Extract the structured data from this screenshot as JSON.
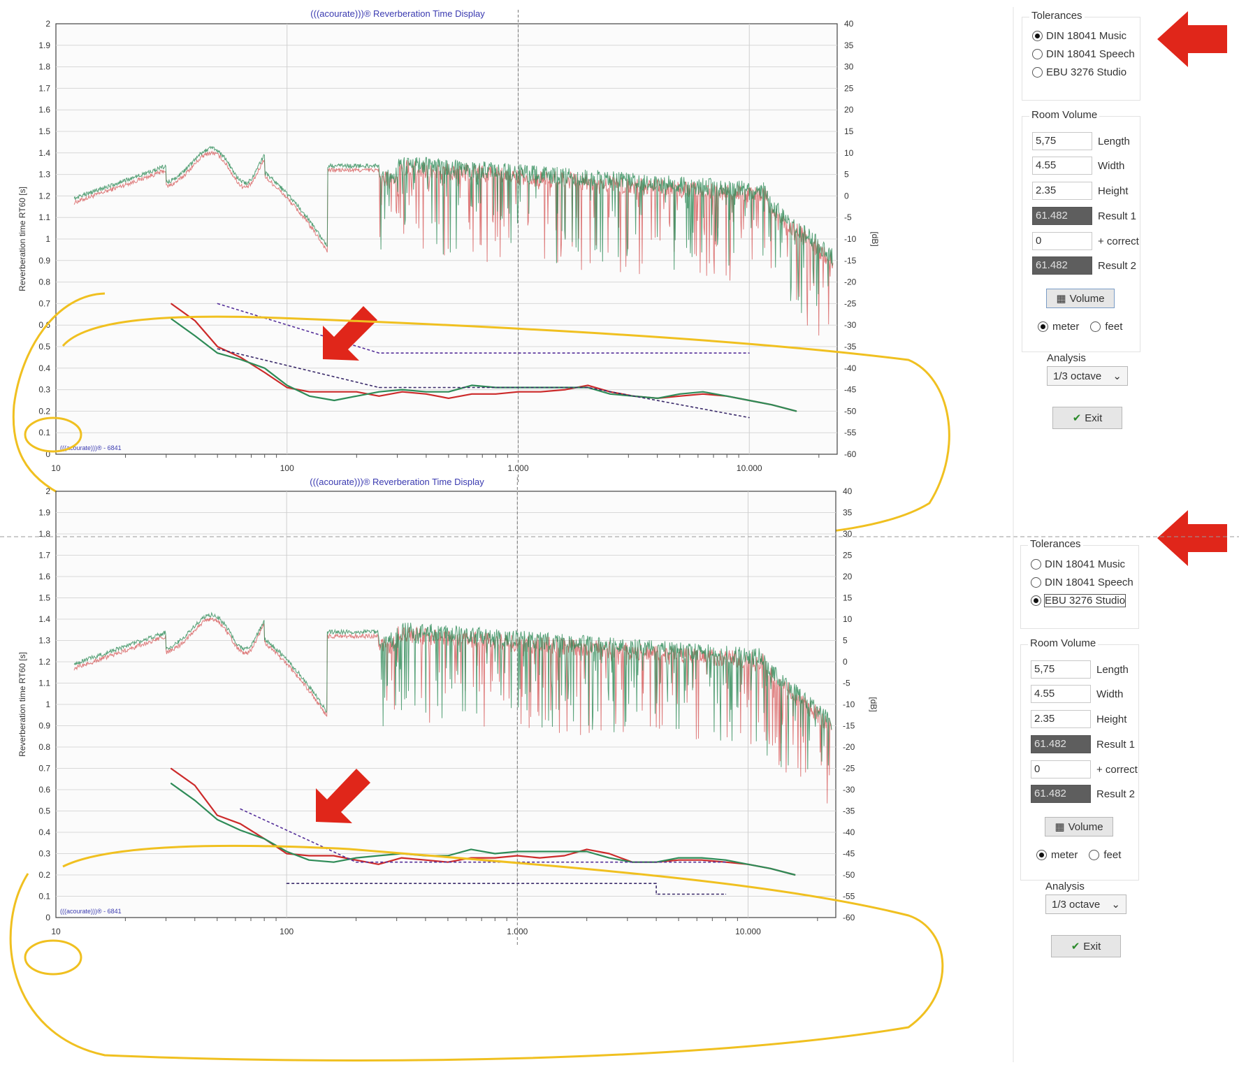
{
  "screens": [
    {
      "title": "(((acourate)))® Reverberation Time Display",
      "y_label": "Reverberation time RT60 [s]",
      "y2_label": "[dB]",
      "watermark": "(((acourate)))® - 6841",
      "y_ticks": [
        "0",
        "0.1",
        "0.2",
        "0.3",
        "0.4",
        "0.5",
        "0.6",
        "0.7",
        "0.8",
        "0.9",
        "1",
        "1.1",
        "1.2",
        "1.3",
        "1.4",
        "1.5",
        "1.6",
        "1.7",
        "1.8",
        "1.9",
        "2"
      ],
      "y2_ticks": [
        "-60",
        "-55",
        "-50",
        "-45",
        "-40",
        "-35",
        "-30",
        "-25",
        "-20",
        "-15",
        "-10",
        "-5",
        "0",
        "5",
        "10",
        "15",
        "20",
        "25",
        "30",
        "35",
        "40"
      ],
      "x_ticks": [
        "10",
        "100",
        "1.000",
        "10.000"
      ],
      "tolerances": {
        "title": "Tolerances",
        "options": [
          "DIN 18041 Music",
          "DIN 18041 Speech",
          "EBU 3276 Studio"
        ],
        "selected": 0
      },
      "room_volume": {
        "title": "Room Volume",
        "fields": [
          {
            "value": "5,75",
            "label": "Length",
            "dark": false
          },
          {
            "value": "4.55",
            "label": "Width",
            "dark": false
          },
          {
            "value": "2.35",
            "label": "Height",
            "dark": false
          },
          {
            "value": "61.482",
            "label": "Result 1",
            "dark": true
          },
          {
            "value": "0",
            "label": "+ correct",
            "dark": false
          },
          {
            "value": "61.482",
            "label": "Result 2",
            "dark": true
          }
        ],
        "volume_button": "Volume",
        "units": [
          "meter",
          "feet"
        ],
        "unit_selected": 0
      },
      "analysis": {
        "title": "Analysis",
        "value": "1/3 octave"
      },
      "exit_button": "Exit",
      "chart_data": {
        "type": "line",
        "x_scale": "log",
        "xlim": [
          10,
          24000
        ],
        "ylim": [
          0,
          2
        ],
        "y2lim": [
          -60,
          40
        ],
        "grid": true,
        "series": [
          {
            "x": [
              31.5,
              40,
              50,
              63,
              80,
              100,
              125,
              160,
              200,
              250,
              315,
              400,
              500,
              630,
              800,
              1000,
              1250,
              1600,
              2000,
              2500,
              3150,
              4000,
              5000,
              6300,
              8000,
              10000,
              12500,
              16000
            ],
            "values": [
              0.7,
              0.62,
              0.5,
              0.45,
              0.38,
              0.31,
              0.29,
              0.29,
              0.29,
              0.27,
              0.29,
              0.28,
              0.26,
              0.28,
              0.28,
              0.29,
              0.29,
              0.3,
              0.32,
              0.29,
              0.27,
              0.26,
              0.27,
              0.28,
              0.27,
              0.25,
              0.23,
              0.2
            ]
          },
          {
            "x": [
              31.5,
              40,
              50,
              63,
              80,
              100,
              125,
              160,
              200,
              250,
              315,
              400,
              500,
              630,
              800,
              1000,
              1250,
              1600,
              2000,
              2500,
              3150,
              4000,
              5000,
              6300,
              8000,
              10000,
              12500,
              16000
            ],
            "values": [
              0.63,
              0.55,
              0.47,
              0.44,
              0.4,
              0.32,
              0.27,
              0.25,
              0.27,
              0.29,
              0.3,
              0.29,
              0.29,
              0.32,
              0.31,
              0.31,
              0.31,
              0.31,
              0.31,
              0.28,
              0.27,
              0.26,
              0.28,
              0.29,
              0.27,
              0.25,
              0.23,
              0.2
            ]
          },
          {
            "x": [
              50,
              250,
              10000
            ],
            "values": [
              0.7,
              0.47,
              0.47
            ]
          },
          {
            "x": [
              50,
              250,
              2000,
              10000
            ],
            "values": [
              0.49,
              0.31,
              0.31,
              0.17
            ]
          }
        ],
        "spectrum": true
      }
    },
    {
      "title": "(((acourate)))® Reverberation Time Display",
      "y_label": "Reverberation time RT60 [s]",
      "y2_label": "[dB]",
      "watermark": "(((acourate)))® - 6841",
      "y_ticks": [
        "0",
        "0.1",
        "0.2",
        "0.3",
        "0.4",
        "0.5",
        "0.6",
        "0.7",
        "0.8",
        "0.9",
        "1",
        "1.1",
        "1.2",
        "1.3",
        "1.4",
        "1.5",
        "1.6",
        "1.7",
        "1.8",
        "1.9",
        "2"
      ],
      "y2_ticks": [
        "-60",
        "-55",
        "-50",
        "-45",
        "-40",
        "-35",
        "-30",
        "-25",
        "-20",
        "-15",
        "-10",
        "-5",
        "0",
        "5",
        "10",
        "15",
        "20",
        "25",
        "30",
        "35",
        "40"
      ],
      "x_ticks": [
        "10",
        "100",
        "1.000",
        "10.000"
      ],
      "tolerances": {
        "title": "Tolerances",
        "options": [
          "DIN 18041 Music",
          "DIN 18041 Speech",
          "EBU 3276 Studio"
        ],
        "selected": 2
      },
      "room_volume": {
        "title": "Room Volume",
        "fields": [
          {
            "value": "5,75",
            "label": "Length",
            "dark": false
          },
          {
            "value": "4.55",
            "label": "Width",
            "dark": false
          },
          {
            "value": "2.35",
            "label": "Height",
            "dark": false
          },
          {
            "value": "61.482",
            "label": "Result 1",
            "dark": true
          },
          {
            "value": "0",
            "label": "+ correct",
            "dark": false
          },
          {
            "value": "61.482",
            "label": "Result 2",
            "dark": true
          }
        ],
        "volume_button": "Volume",
        "units": [
          "meter",
          "feet"
        ],
        "unit_selected": 0
      },
      "analysis": {
        "title": "Analysis",
        "value": "1/3 octave"
      },
      "exit_button": "Exit",
      "chart_data": {
        "type": "line",
        "x_scale": "log",
        "xlim": [
          10,
          24000
        ],
        "ylim": [
          0,
          2
        ],
        "y2lim": [
          -60,
          40
        ],
        "grid": true,
        "series": [
          {
            "x": [
              31.5,
              40,
              50,
              63,
              80,
              100,
              125,
              160,
              200,
              250,
              315,
              400,
              500,
              630,
              800,
              1000,
              1250,
              1600,
              2000,
              2500,
              3150,
              4000,
              5000,
              6300,
              8000,
              10000,
              12500,
              16000
            ],
            "values": [
              0.7,
              0.62,
              0.48,
              0.44,
              0.37,
              0.3,
              0.29,
              0.29,
              0.27,
              0.25,
              0.28,
              0.27,
              0.26,
              0.28,
              0.28,
              0.29,
              0.28,
              0.29,
              0.32,
              0.3,
              0.26,
              0.26,
              0.27,
              0.27,
              0.26,
              0.25,
              0.23,
              0.2
            ]
          },
          {
            "x": [
              31.5,
              40,
              50,
              63,
              80,
              100,
              125,
              160,
              200,
              250,
              315,
              400,
              500,
              630,
              800,
              1000,
              1250,
              1600,
              2000,
              2500,
              3150,
              4000,
              5000,
              6300,
              8000,
              10000,
              12500,
              16000
            ],
            "values": [
              0.63,
              0.55,
              0.46,
              0.41,
              0.37,
              0.31,
              0.27,
              0.26,
              0.28,
              0.29,
              0.3,
              0.29,
              0.29,
              0.32,
              0.3,
              0.31,
              0.31,
              0.31,
              0.31,
              0.28,
              0.26,
              0.26,
              0.28,
              0.28,
              0.27,
              0.25,
              0.23,
              0.2
            ]
          },
          {
            "x": [
              63,
              200,
              8000
            ],
            "values": [
              0.51,
              0.26,
              0.26
            ]
          },
          {
            "x": [
              100,
              4000,
              4000,
              8000
            ],
            "values": [
              0.16,
              0.16,
              0.11,
              0.11
            ]
          }
        ],
        "spectrum": true
      }
    }
  ]
}
